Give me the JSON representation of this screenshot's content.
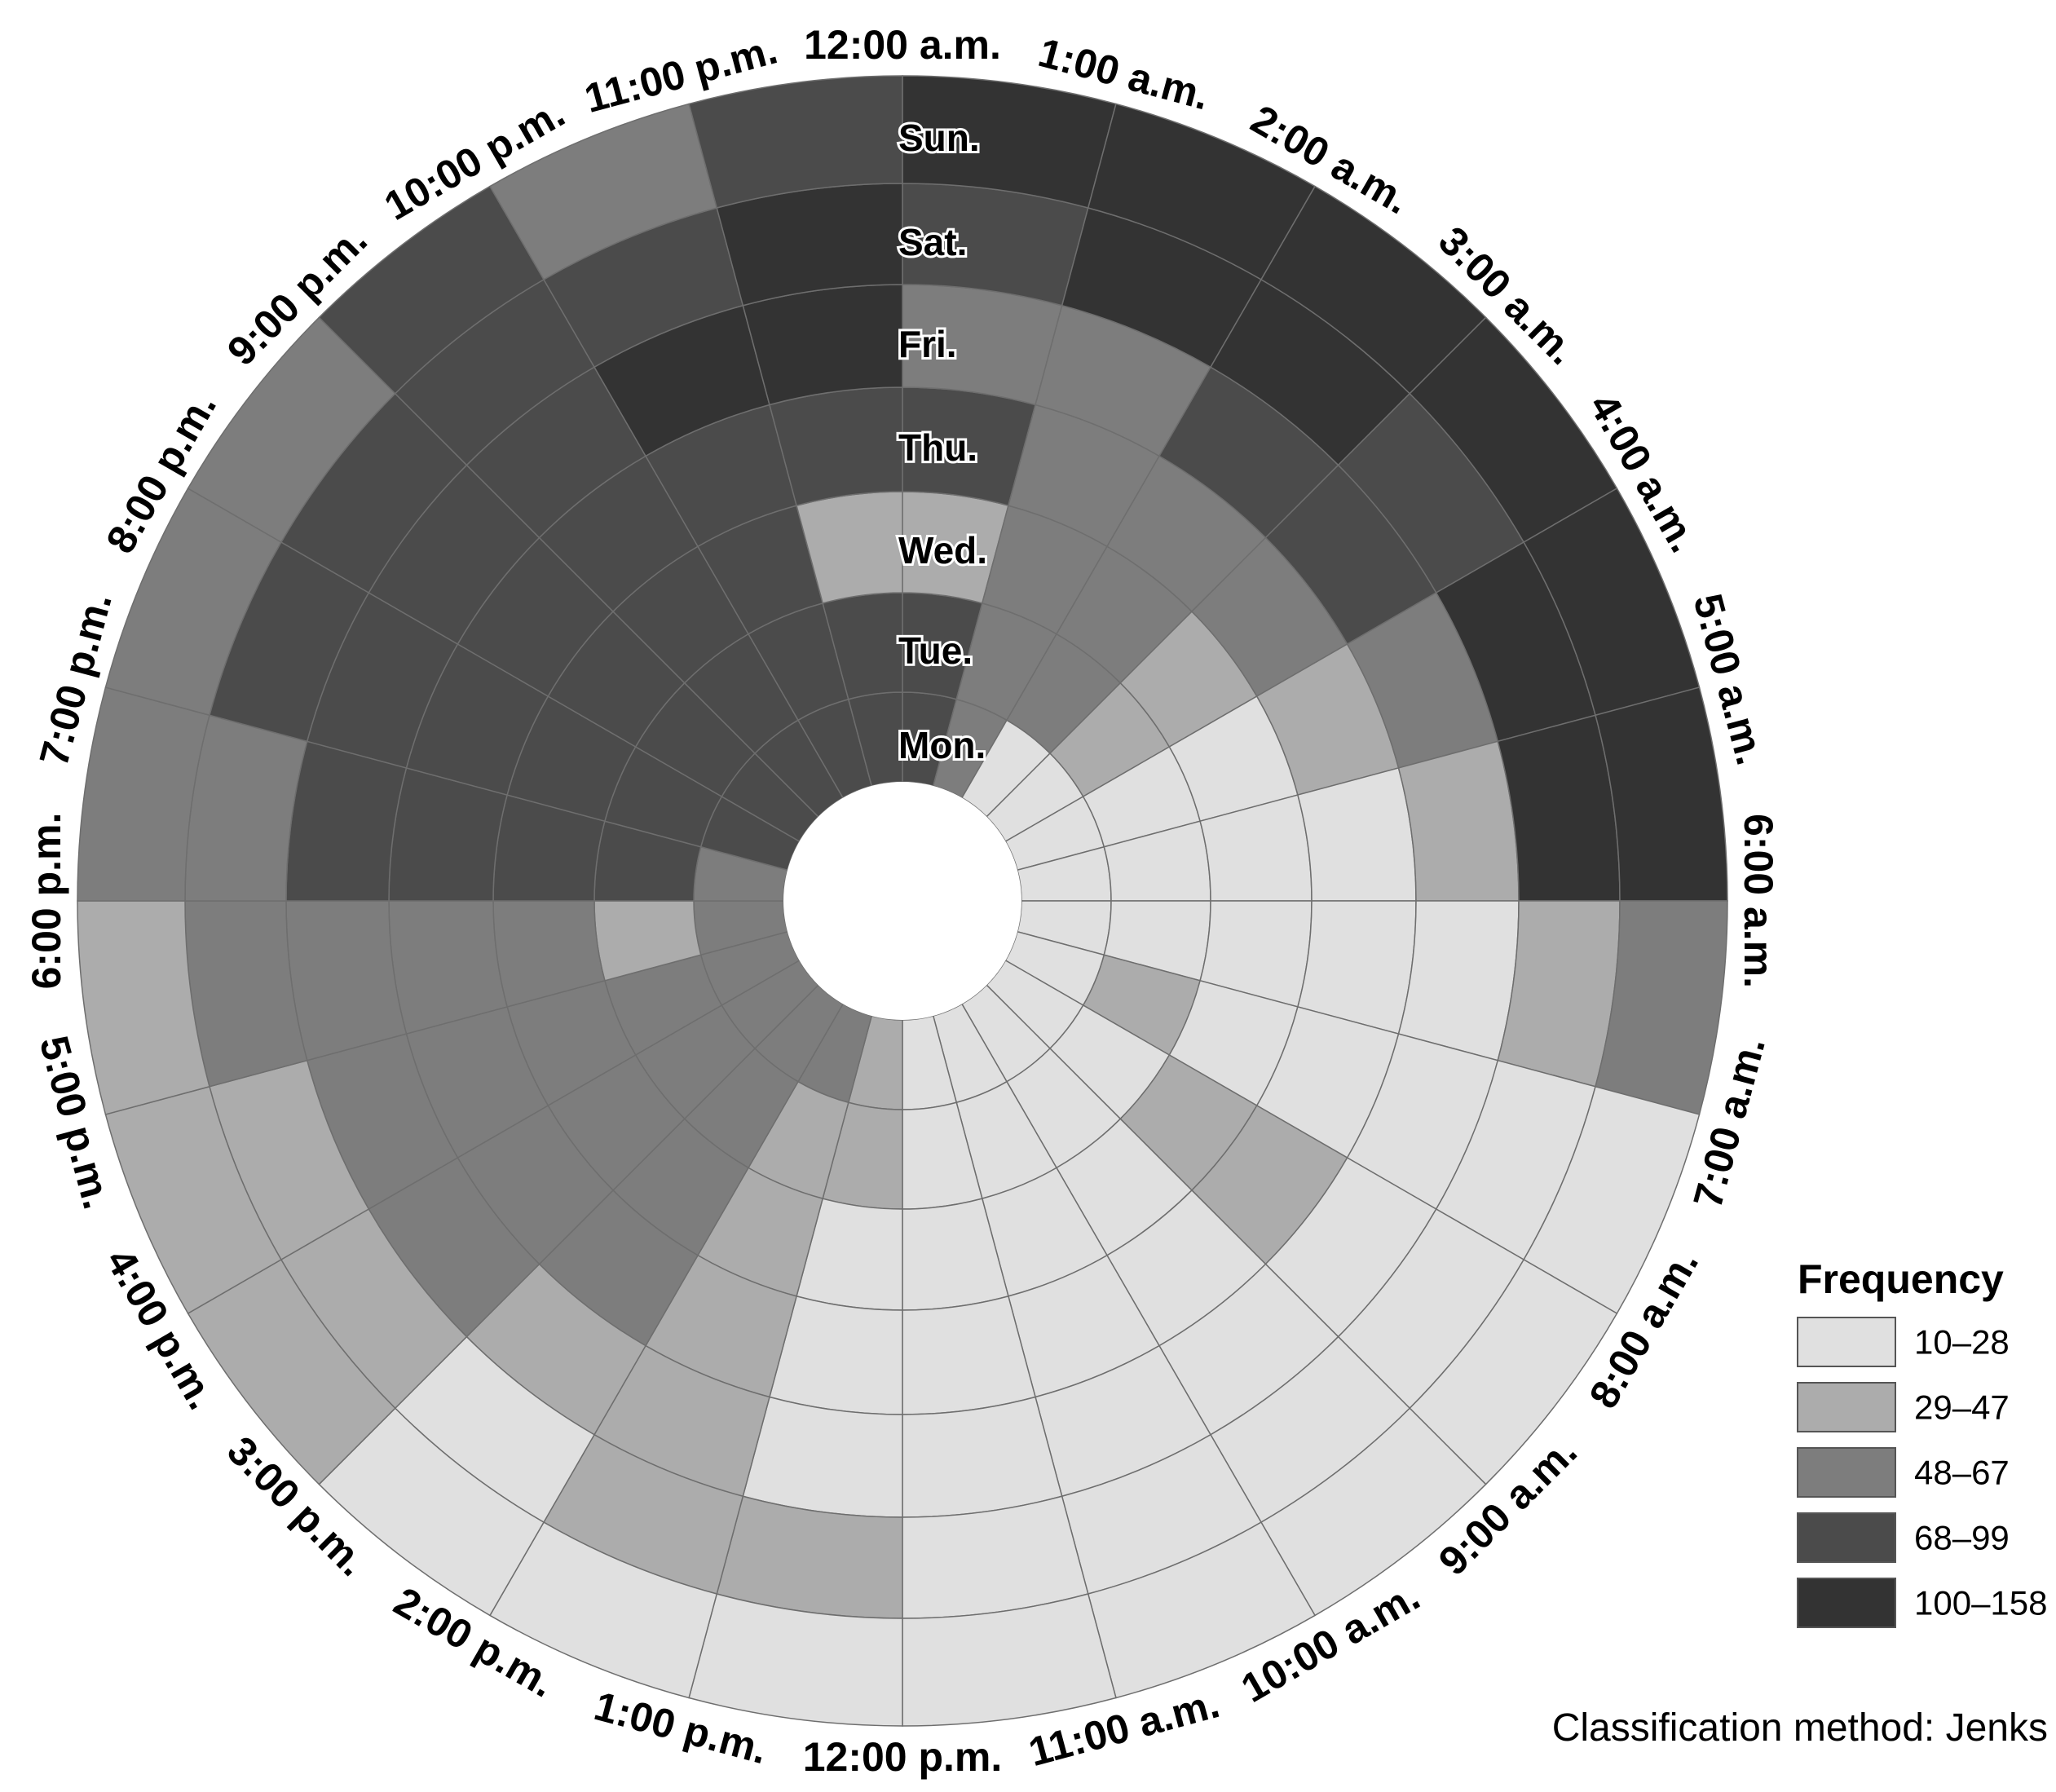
{
  "chart_data": {
    "type": "heatmap",
    "layout": "radial",
    "hours": [
      "12:00 a.m.",
      "1:00 a.m.",
      "2:00 a.m.",
      "3:00 a.m.",
      "4:00 a.m.",
      "5:00 a.m.",
      "6:00 a.m.",
      "7:00 a.m.",
      "8:00 a.m.",
      "9:00 a.m.",
      "10:00 a.m.",
      "11:00 a.m.",
      "12:00 p.m.",
      "1:00 p.m.",
      "2:00 p.m.",
      "3:00 p.m.",
      "4:00 p.m.",
      "5:00 p.m.",
      "6:00 p.m.",
      "7:00 p.m.",
      "8:00 p.m.",
      "9:00 p.m.",
      "10:00 p.m.",
      "11:00 p.m."
    ],
    "days": [
      "Mon.",
      "Tue.",
      "Wed.",
      "Thu.",
      "Fri.",
      "Sat.",
      "Sun."
    ],
    "class_matrix_description": "rows = days (Mon. innermost to Sun. outermost), columns = hours starting at 12:00 a.m.; value = frequency class index into legend.classes",
    "class_matrix": [
      [
        3,
        2,
        0,
        0,
        0,
        0,
        0,
        0,
        0,
        0,
        0,
        0,
        1,
        2,
        2,
        2,
        2,
        2,
        2,
        3,
        3,
        3,
        3,
        3
      ],
      [
        3,
        2,
        2,
        1,
        0,
        0,
        0,
        1,
        0,
        0,
        0,
        0,
        1,
        1,
        2,
        2,
        2,
        1,
        3,
        3,
        3,
        3,
        3,
        3
      ],
      [
        1,
        2,
        2,
        1,
        0,
        0,
        0,
        0,
        1,
        0,
        0,
        0,
        0,
        1,
        2,
        2,
        2,
        2,
        3,
        3,
        3,
        3,
        3,
        1
      ],
      [
        3,
        2,
        2,
        2,
        1,
        0,
        0,
        0,
        1,
        0,
        0,
        0,
        0,
        1,
        2,
        2,
        2,
        2,
        3,
        3,
        3,
        3,
        3,
        3
      ],
      [
        2,
        2,
        3,
        3,
        2,
        1,
        0,
        0,
        0,
        0,
        0,
        0,
        0,
        1,
        1,
        2,
        2,
        2,
        3,
        3,
        3,
        3,
        4,
        4
      ],
      [
        3,
        4,
        4,
        3,
        4,
        4,
        1,
        0,
        0,
        0,
        0,
        0,
        1,
        1,
        0,
        1,
        1,
        2,
        2,
        3,
        3,
        3,
        3,
        4
      ],
      [
        4,
        4,
        4,
        4,
        4,
        4,
        2,
        0,
        0,
        0,
        0,
        0,
        0,
        0,
        0,
        1,
        1,
        1,
        2,
        2,
        2,
        3,
        2,
        3
      ]
    ],
    "legend": {
      "title": "Frequency",
      "classes": [
        {
          "label": "10–28",
          "color": "#e0e0e0"
        },
        {
          "label": "29–47",
          "color": "#acacac"
        },
        {
          "label": "48–67",
          "color": "#7d7d7d"
        },
        {
          "label": "68–99",
          "color": "#4b4b4b"
        },
        {
          "label": "100–158",
          "color": "#333333"
        }
      ]
    },
    "note": "Classification method: Jenks"
  },
  "colors": {
    "grid_line": "#6e6e6e",
    "background": "#ffffff"
  }
}
